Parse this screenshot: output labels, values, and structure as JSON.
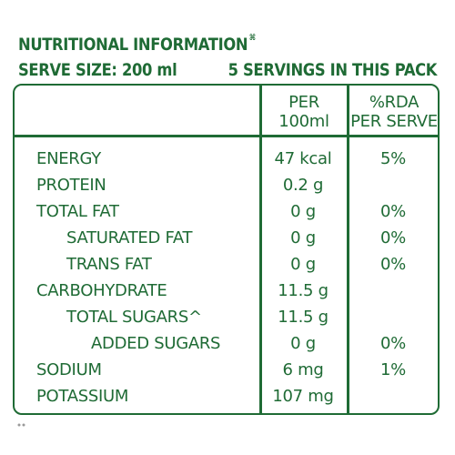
{
  "header": {
    "title": "NUTRITIONAL INFORMATION",
    "title_mark": "⌘",
    "serve_size": "SERVE SIZE: 200 ml",
    "servings": "5 SERVINGS IN THIS PACK"
  },
  "columns": {
    "per_line1": "PER",
    "per_line2": "100ml",
    "rda_line1": "%RDA",
    "rda_line2": "PER SERVE"
  },
  "rows": [
    {
      "label": "ENERGY",
      "value": "47 kcal",
      "rda": "5%"
    },
    {
      "label": "PROTEIN",
      "value": "0.2 g",
      "rda": ""
    },
    {
      "label": "TOTAL FAT",
      "value": "0 g",
      "rda": "0%"
    },
    {
      "label": "SATURATED FAT",
      "value": "0 g",
      "rda": "0%"
    },
    {
      "label": "TRANS FAT",
      "value": "0 g",
      "rda": "0%"
    },
    {
      "label": "CARBOHYDRATE",
      "value": "11.5 g",
      "rda": ""
    },
    {
      "label": "TOTAL SUGARS^",
      "value": "11.5 g",
      "rda": ""
    },
    {
      "label": "ADDED SUGARS",
      "value": "0 g",
      "rda": "0%"
    },
    {
      "label": "SODIUM",
      "value": "6 mg",
      "rda": "1%"
    },
    {
      "label": "POTASSIUM",
      "value": "107 mg",
      "rda": ""
    }
  ],
  "colors": {
    "text": "#1f6b35",
    "border": "#1f6b35",
    "background": "#ffffff"
  }
}
